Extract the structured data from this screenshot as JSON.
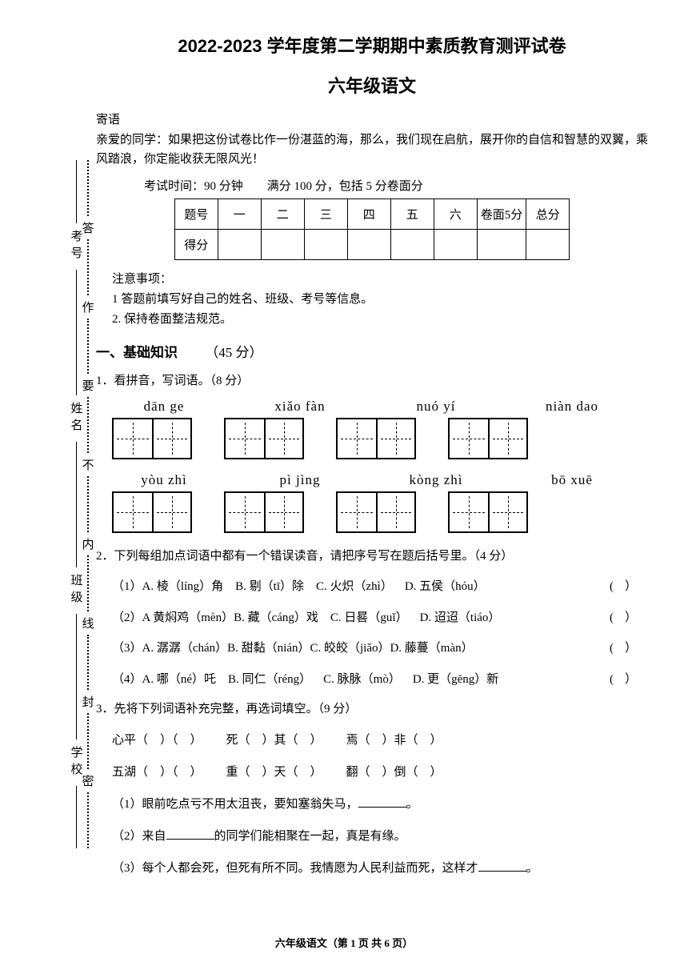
{
  "header": {
    "title_main": "2022-2023 学年度第二学期期中素质教育测评试卷",
    "title_sub": "六年级语文"
  },
  "intro": {
    "label": "寄语",
    "text": "亲爱的同学：如果把这份试卷比作一份湛蓝的海，那么，我们现在启航，展开你的自信和智慧的双翼，乘风踏浪，你定能收获无限风光！",
    "exam_info": "考试时间：90 分钟  满分 100 分，包括 5 分卷面分"
  },
  "score_table": {
    "row1": [
      "题号",
      "一",
      "二",
      "三",
      "四",
      "五",
      "六",
      "卷面5分",
      "总分"
    ],
    "row2_label": "得分"
  },
  "notice": {
    "label": "注意事项：",
    "items": [
      "1 答题前填写好自己的姓名、班级、考号等信息。",
      "2. 保持卷面整洁规范。"
    ]
  },
  "section1": {
    "head": "一、基础知识",
    "pts": "（45 分）"
  },
  "q1": {
    "text": "1．看拼音，写词语。（8 分）",
    "row1_pinyin": [
      "dān ge",
      "xiǎo fàn",
      "nuó yí",
      "niàn dao"
    ],
    "row2_pinyin": [
      "yòu zhì",
      "pì jìng",
      "kòng zhì",
      "bō xuē"
    ]
  },
  "q2": {
    "text": "2．下列每组加点词语中都有一个错误读音，请把序号写在题后括号里。（4 分）",
    "items": [
      "（1）A. 棱（líng）角 B. 剔（tī）除 C. 火炽（zhì） D. 五侯（hóu）",
      "（2）A 黄焖鸡（mèn）B. 藏（cáng）戏 C. 日晷（guǐ） D. 迢迢（tiáo）",
      "（3）A. 潺潺（chán）B. 甜黏（nián）C. 皎皎（jiǎo）D. 藤蔓（màn）",
      "（4）A. 哪（né）吒 B. 同仁（réng） C. 脉脉（mò） D. 更（gēng）新"
    ]
  },
  "q3": {
    "text": "3．先将下列词语补充完整，再选词填空。（9 分）",
    "line1": "心平（ ）（ ）  死（ ）其（ ）  焉（ ）非（ ）",
    "line2": "五湖（ ）（ ）  重（ ）天（ ）  翻（ ）倒（ ）",
    "sub1_pre": "（1）眼前吃点亏不用太沮丧，要知塞翁失马，",
    "sub1_post": "。",
    "sub2_pre": "（2）来自",
    "sub2_post": "的同学们能相聚在一起，真是有缘。",
    "sub3_pre": "（3）每个人都会死，但死有所不同。我情愿为人民利益而死，这样才",
    "sub3_post": "。"
  },
  "binding": {
    "labels": [
      "学校",
      "班级",
      "姓名",
      "考号"
    ],
    "seal_words": [
      "密",
      "封",
      "线",
      "内",
      "不",
      "要",
      "作",
      "答"
    ]
  },
  "footer": "六年级语文（第 1 页 共 6 页）"
}
